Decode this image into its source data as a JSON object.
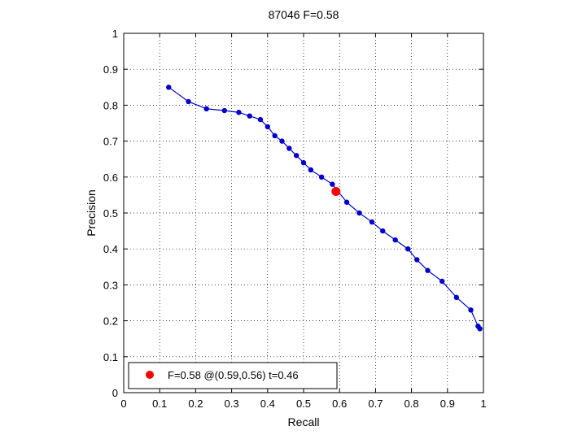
{
  "chart_data": {
    "type": "line",
    "title": "87046 F=0.58",
    "xlabel": "Recall",
    "ylabel": "Precision",
    "xlim": [
      0,
      1
    ],
    "ylim": [
      0,
      1
    ],
    "grid": true,
    "xticks": [
      "0",
      "0.1",
      "0.2",
      "0.3",
      "0.4",
      "0.5",
      "0.6",
      "0.7",
      "0.8",
      "0.9",
      "1"
    ],
    "yticks": [
      "0",
      "0.1",
      "0.2",
      "0.3",
      "0.4",
      "0.5",
      "0.6",
      "0.7",
      "0.8",
      "0.9",
      "1"
    ],
    "series": [
      {
        "color": "#0000cc",
        "x": [
          0.125,
          0.18,
          0.23,
          0.28,
          0.32,
          0.35,
          0.38,
          0.4,
          0.42,
          0.44,
          0.46,
          0.48,
          0.5,
          0.52,
          0.55,
          0.58,
          0.62,
          0.655,
          0.69,
          0.72,
          0.755,
          0.79,
          0.815,
          0.845,
          0.885,
          0.925,
          0.965,
          0.985,
          0.99
        ],
        "y": [
          0.85,
          0.81,
          0.79,
          0.785,
          0.78,
          0.77,
          0.76,
          0.74,
          0.715,
          0.7,
          0.68,
          0.66,
          0.64,
          0.62,
          0.6,
          0.58,
          0.53,
          0.5,
          0.475,
          0.45,
          0.425,
          0.4,
          0.37,
          0.34,
          0.31,
          0.265,
          0.23,
          0.185,
          0.178
        ]
      }
    ],
    "best_point": {
      "x": 0.59,
      "y": 0.56,
      "color": "#ff0000"
    },
    "legend": {
      "position": "bottom-left",
      "text": "F=0.58 @(0.59,0.56) t=0.46"
    }
  }
}
